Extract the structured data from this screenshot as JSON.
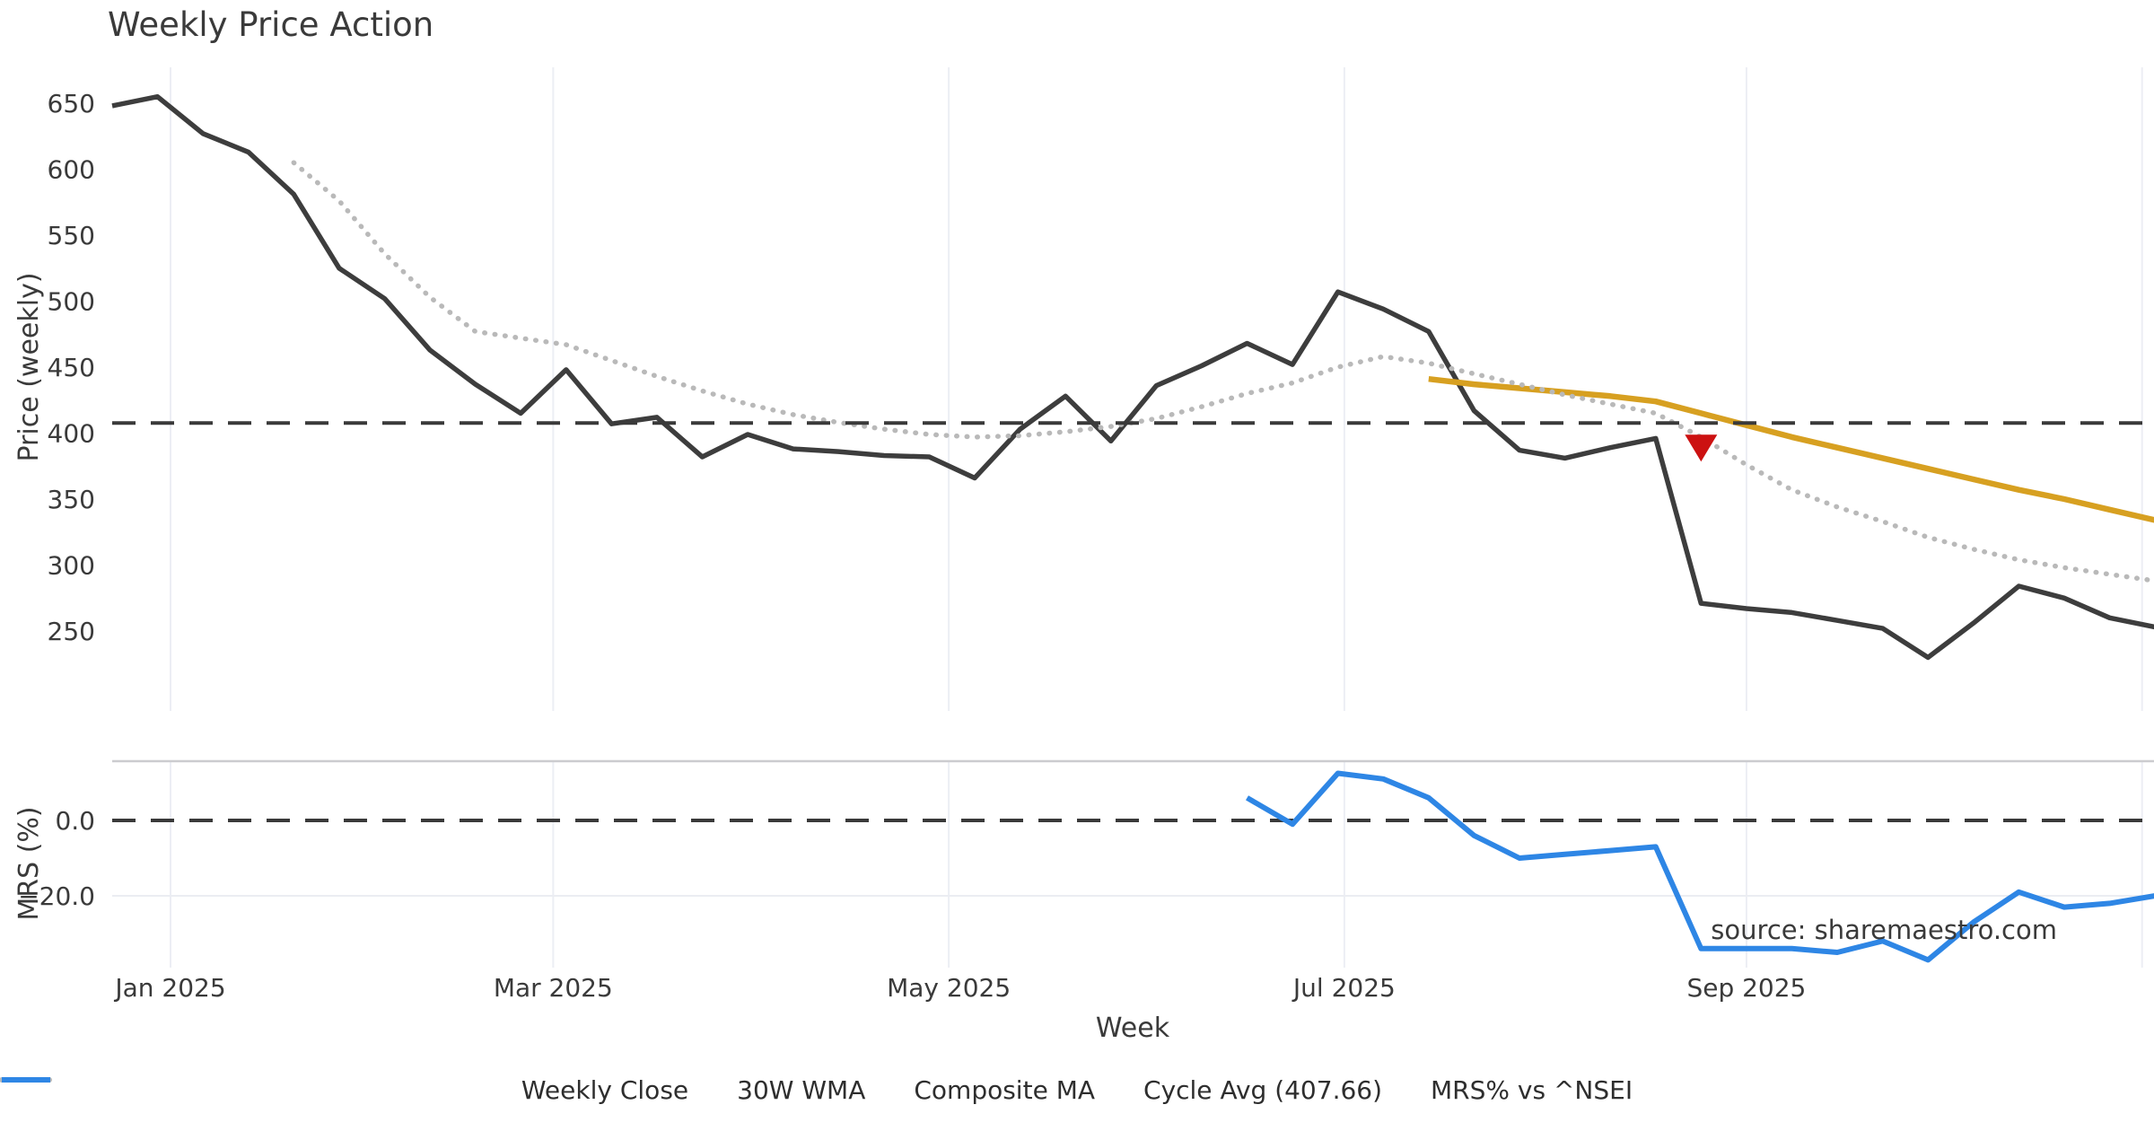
{
  "title": "Weekly Price Action",
  "source": "source: sharemaestro.com",
  "axes": {
    "price_label": "Price (weekly)",
    "mrs_label": "MRS (%)",
    "x_label": "Week",
    "price_ticks": [
      650,
      600,
      550,
      500,
      450,
      400,
      350,
      300,
      250
    ],
    "mrs_ticks": [
      {
        "label": "0.0",
        "value": 0
      },
      {
        "label": "−20.0",
        "value": -20
      }
    ],
    "x_ticks": [
      {
        "label": "Jan 2025",
        "day": 0
      },
      {
        "label": "Mar 2025",
        "day": 59
      },
      {
        "label": "May 2025",
        "day": 120
      },
      {
        "label": "Jul 2025",
        "day": 181
      },
      {
        "label": "Sep 2025",
        "day": 243
      }
    ],
    "gridline_days": [
      0,
      59,
      120,
      181,
      243,
      304
    ]
  },
  "colors": {
    "close": "#3d3d3d",
    "wma": "#d7a021",
    "composite": "#b9b9b9",
    "cycle": "#3a3a3a",
    "mrs": "#2e86e5",
    "marker": "#cc1111",
    "gridline": "#eceef4",
    "mrs_spine": "#cccccf",
    "mrs_gridline": "#ebedf2",
    "tick_text": "#3a3a3a",
    "title_text": "#262626",
    "source_text": "#9b9b9b"
  },
  "legend": [
    {
      "label": "Weekly Close",
      "color": "#3d3d3d",
      "style": "solid"
    },
    {
      "label": "30W WMA",
      "color": "#d7a021",
      "style": "solid"
    },
    {
      "label": "Composite MA",
      "color": "#b9b9b9",
      "style": "dotted"
    },
    {
      "label": "Cycle Avg (407.66)",
      "color": "#3a3a3a",
      "style": "dashed"
    },
    {
      "label": "MRS% vs ^NSEI",
      "color": "#2e86e5",
      "style": "solid"
    }
  ],
  "chart_data": {
    "type": "line",
    "title": "Weekly Price Action",
    "xlabel": "Week",
    "ylabel_top": "Price (weekly)",
    "ylabel_bottom": "MRS (%)",
    "legend_position": "bottom",
    "grid": "vertical-months",
    "price_ylim": [
      215,
      677
    ],
    "mrs_ylim": [
      -38,
      16
    ],
    "cycle_avg": 407.66,
    "dates": [
      "2024-12-23",
      "2024-12-30",
      "2025-01-06",
      "2025-01-13",
      "2025-01-20",
      "2025-01-27",
      "2025-02-03",
      "2025-02-10",
      "2025-02-17",
      "2025-02-24",
      "2025-03-03",
      "2025-03-10",
      "2025-03-17",
      "2025-03-24",
      "2025-03-31",
      "2025-04-07",
      "2025-04-14",
      "2025-04-21",
      "2025-04-28",
      "2025-05-05",
      "2025-05-12",
      "2025-05-19",
      "2025-05-26",
      "2025-06-02",
      "2025-06-09",
      "2025-06-16",
      "2025-06-23",
      "2025-06-30",
      "2025-07-07",
      "2025-07-14",
      "2025-07-21",
      "2025-07-28",
      "2025-08-04",
      "2025-08-11",
      "2025-08-18",
      "2025-08-25",
      "2025-09-01",
      "2025-09-08",
      "2025-09-15",
      "2025-09-22",
      "2025-09-29",
      "2025-10-06",
      "2025-10-13",
      "2025-10-20",
      "2025-10-27",
      "2025-11-03"
    ],
    "series": [
      {
        "name": "Weekly Close",
        "axis": "price",
        "style": "solid",
        "color": "#3d3d3d",
        "values": [
          648,
          655,
          627,
          613,
          581,
          525,
          502,
          463,
          437,
          415,
          448,
          407,
          412,
          382,
          399,
          388,
          386,
          383,
          382,
          366,
          403,
          428,
          394,
          436,
          451,
          468,
          452,
          507,
          494,
          477,
          417,
          387,
          381,
          389,
          396,
          271,
          267,
          264,
          258,
          252,
          230,
          256,
          284,
          275,
          260,
          253
        ]
      },
      {
        "name": "30W WMA",
        "axis": "price",
        "style": "solid",
        "color": "#d7a021",
        "values": [
          null,
          null,
          null,
          null,
          null,
          null,
          null,
          null,
          null,
          null,
          null,
          null,
          null,
          null,
          null,
          null,
          null,
          null,
          null,
          null,
          null,
          null,
          null,
          null,
          null,
          null,
          null,
          null,
          null,
          441,
          437,
          434,
          431,
          428,
          424,
          415,
          406,
          397,
          389,
          381,
          373,
          365,
          357,
          350,
          342,
          334
        ]
      },
      {
        "name": "Composite MA",
        "axis": "price",
        "style": "dotted",
        "color": "#b9b9b9",
        "values": [
          null,
          null,
          null,
          null,
          605,
          576,
          536,
          503,
          477,
          472,
          467,
          455,
          443,
          432,
          422,
          414,
          408,
          403,
          399,
          397,
          398,
          401,
          405,
          411,
          420,
          430,
          438,
          450,
          458,
          453,
          445,
          437,
          429,
          422,
          415,
          397,
          376,
          357,
          344,
          333,
          321,
          312,
          304,
          298,
          293,
          288
        ]
      },
      {
        "name": "Cycle Avg (407.66)",
        "axis": "price",
        "style": "dashed",
        "color": "#3a3a3a",
        "constant": 407.66
      },
      {
        "name": "MRS% vs ^NSEI",
        "axis": "mrs",
        "style": "solid",
        "color": "#2e86e5",
        "values": [
          null,
          null,
          null,
          null,
          null,
          null,
          null,
          null,
          null,
          null,
          null,
          null,
          null,
          null,
          null,
          null,
          null,
          null,
          null,
          null,
          null,
          null,
          null,
          null,
          null,
          6,
          -1,
          12.5,
          11,
          6,
          -4,
          -10,
          -9,
          -8,
          -7,
          -34,
          -34,
          -34,
          -35,
          -32,
          -37,
          -27,
          -19,
          -23,
          -22,
          -20
        ]
      }
    ],
    "marker": {
      "shape": "triangle-down",
      "color": "#cc1111",
      "date": "2025-08-25",
      "value": 390
    }
  }
}
